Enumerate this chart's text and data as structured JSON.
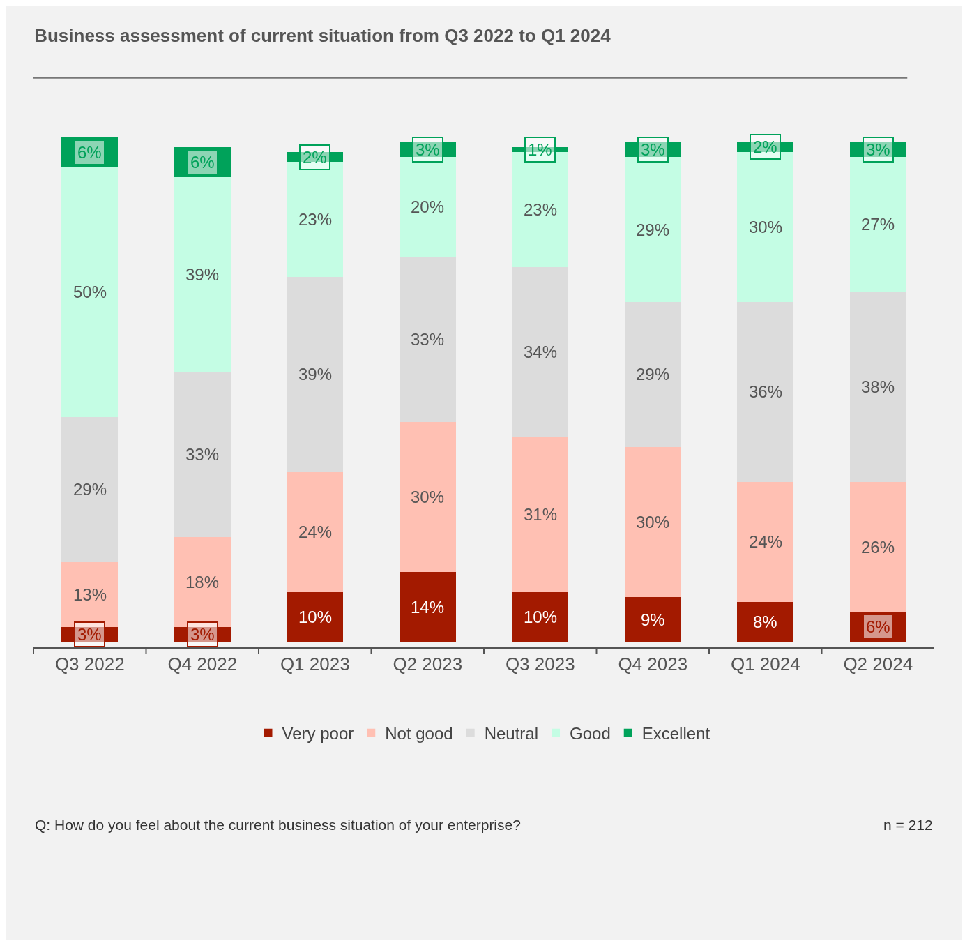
{
  "chart_data": {
    "type": "bar",
    "title": "Business assessment of current situation from Q3 2022 to Q1 2024",
    "categories": [
      "Q3 2022",
      "Q4 2022",
      "Q1 2023",
      "Q2 2023",
      "Q3 2023",
      "Q4 2023",
      "Q1 2024",
      "Q2 2024"
    ],
    "stacked": true,
    "legend": "bottom",
    "grid": false,
    "series": [
      {
        "name": "Very poor",
        "color": "#a31a00",
        "values": [
          3,
          3,
          10,
          14,
          10,
          9,
          8,
          6
        ],
        "value_labels": [
          "3%",
          "3%",
          "10%",
          "14%",
          "10%",
          "9%",
          "8%",
          "6%"
        ]
      },
      {
        "name": "Not good",
        "color": "#ffc0b3",
        "values": [
          13,
          18,
          24,
          30,
          31,
          30,
          24,
          26
        ],
        "value_labels": [
          "13%",
          "18%",
          "24%",
          "30%",
          "31%",
          "30%",
          "24%",
          "26%"
        ]
      },
      {
        "name": "Neutral",
        "color": "#dcdcdc",
        "values": [
          29,
          33,
          39,
          33,
          34,
          29,
          36,
          38
        ],
        "value_labels": [
          "29%",
          "33%",
          "39%",
          "33%",
          "34%",
          "29%",
          "36%",
          "38%"
        ]
      },
      {
        "name": "Good",
        "color": "#c4fde4",
        "values": [
          50,
          39,
          23,
          20,
          23,
          29,
          30,
          27
        ],
        "value_labels": [
          "50%",
          "39%",
          "23%",
          "20%",
          "23%",
          "29%",
          "30%",
          "27%"
        ]
      },
      {
        "name": "Excellent",
        "color": "#00a25a",
        "values": [
          6,
          6,
          2,
          3,
          1,
          3,
          2,
          3
        ],
        "value_labels": [
          "6%",
          "6%",
          "2%",
          "3%",
          "1%",
          "3%",
          "2%",
          "3%"
        ]
      }
    ],
    "annotations": [
      "Q: How do you feel about the current business situation of your enterprise?",
      "n = 212"
    ]
  }
}
